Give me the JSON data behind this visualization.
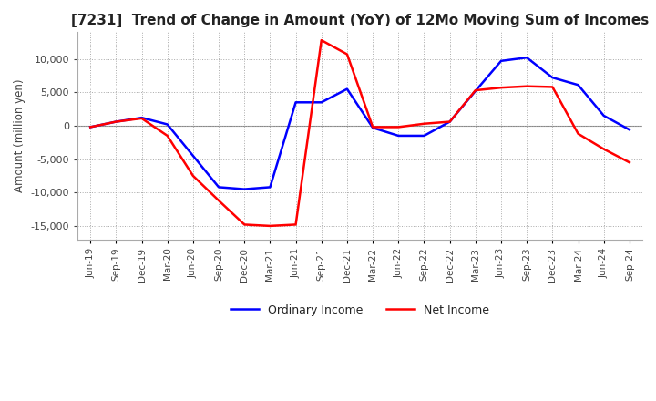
{
  "title": "[7231]  Trend of Change in Amount (YoY) of 12Mo Moving Sum of Incomes",
  "ylabel": "Amount (million yen)",
  "x_labels": [
    "Jun-19",
    "Sep-19",
    "Dec-19",
    "Mar-20",
    "Jun-20",
    "Sep-20",
    "Dec-20",
    "Mar-21",
    "Jun-21",
    "Sep-21",
    "Dec-21",
    "Mar-22",
    "Jun-22",
    "Sep-22",
    "Dec-22",
    "Mar-23",
    "Jun-23",
    "Sep-23",
    "Dec-23",
    "Mar-24",
    "Jun-24",
    "Sep-24"
  ],
  "ordinary_income": [
    -200,
    600,
    1200,
    200,
    -4500,
    -9200,
    -9500,
    -9200,
    3500,
    3500,
    5500,
    -300,
    -1500,
    -1500,
    600,
    5200,
    9700,
    10200,
    7200,
    6100,
    1500,
    -600
  ],
  "net_income": [
    -200,
    600,
    1100,
    -1500,
    -7500,
    -11200,
    -14800,
    -15000,
    -14800,
    12800,
    10700,
    -200,
    -200,
    300,
    600,
    5300,
    5700,
    5900,
    5800,
    -1200,
    -3500,
    -5500
  ],
  "ordinary_color": "#0000ff",
  "net_color": "#ff0000",
  "ylim": [
    -17000,
    14000
  ],
  "yticks": [
    -15000,
    -10000,
    -5000,
    0,
    5000,
    10000
  ],
  "background_color": "#ffffff",
  "grid_color": "#aaaaaa",
  "title_fontsize": 11,
  "legend_fontsize": 9
}
